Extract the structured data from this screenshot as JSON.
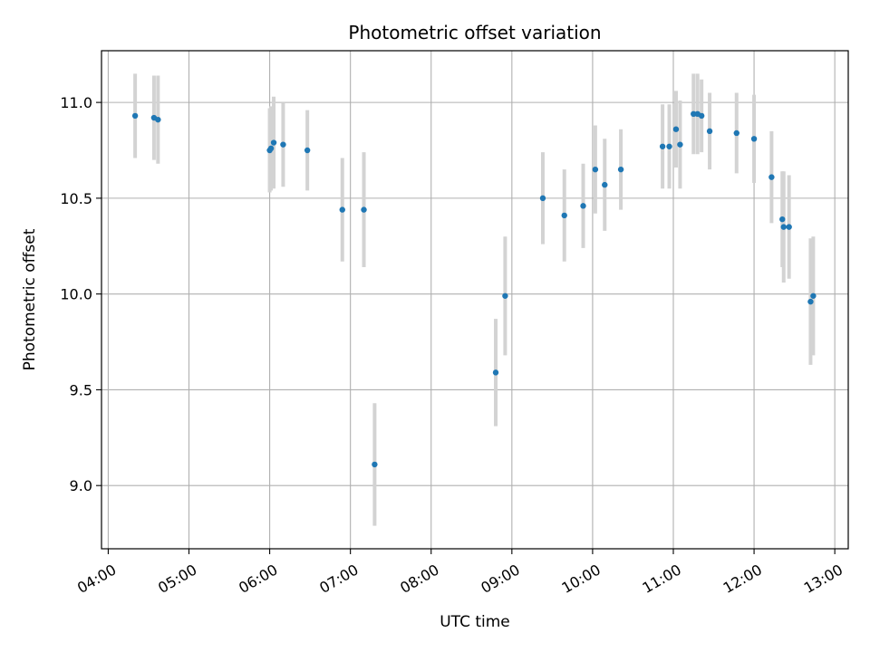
{
  "chart_data": {
    "type": "scatter",
    "title": "Photometric offset variation",
    "xlabel": "UTC time",
    "ylabel": "Photometric offset",
    "grid": true,
    "xlim": [
      "03:55",
      "13:10"
    ],
    "ylim": [
      8.67,
      11.27
    ],
    "x_ticks": [
      "04:00",
      "05:00",
      "06:00",
      "07:00",
      "08:00",
      "09:00",
      "10:00",
      "11:00",
      "12:00",
      "13:00"
    ],
    "y_ticks": [
      "9.0",
      "9.5",
      "10.0",
      "10.5",
      "11.0"
    ],
    "colors": {
      "marker": "#1f77b4",
      "errorbar": "#d3d3d3",
      "grid": "#b0b0b0"
    },
    "points": [
      {
        "x": "04:20",
        "y": 10.93,
        "err": 0.22
      },
      {
        "x": "04:34",
        "y": 10.92,
        "err": 0.22
      },
      {
        "x": "04:37",
        "y": 10.91,
        "err": 0.23
      },
      {
        "x": "06:00",
        "y": 10.75,
        "err": 0.22
      },
      {
        "x": "06:01",
        "y": 10.76,
        "err": 0.22
      },
      {
        "x": "06:03",
        "y": 10.79,
        "err": 0.24
      },
      {
        "x": "06:10",
        "y": 10.78,
        "err": 0.22
      },
      {
        "x": "06:28",
        "y": 10.75,
        "err": 0.21
      },
      {
        "x": "06:54",
        "y": 10.44,
        "err": 0.27
      },
      {
        "x": "07:10",
        "y": 10.44,
        "err": 0.3
      },
      {
        "x": "07:18",
        "y": 9.11,
        "err": 0.32
      },
      {
        "x": "08:48",
        "y": 9.59,
        "err": 0.28
      },
      {
        "x": "08:55",
        "y": 9.99,
        "err": 0.31
      },
      {
        "x": "09:23",
        "y": 10.5,
        "err": 0.24
      },
      {
        "x": "09:39",
        "y": 10.41,
        "err": 0.24
      },
      {
        "x": "09:53",
        "y": 10.46,
        "err": 0.22
      },
      {
        "x": "10:02",
        "y": 10.65,
        "err": 0.23
      },
      {
        "x": "10:09",
        "y": 10.57,
        "err": 0.24
      },
      {
        "x": "10:21",
        "y": 10.65,
        "err": 0.21
      },
      {
        "x": "10:52",
        "y": 10.77,
        "err": 0.22
      },
      {
        "x": "10:57",
        "y": 10.77,
        "err": 0.22
      },
      {
        "x": "11:02",
        "y": 10.86,
        "err": 0.2
      },
      {
        "x": "11:05",
        "y": 10.78,
        "err": 0.23
      },
      {
        "x": "11:15",
        "y": 10.94,
        "err": 0.21
      },
      {
        "x": "11:18",
        "y": 10.94,
        "err": 0.21
      },
      {
        "x": "11:21",
        "y": 10.93,
        "err": 0.19
      },
      {
        "x": "11:27",
        "y": 10.85,
        "err": 0.2
      },
      {
        "x": "11:47",
        "y": 10.84,
        "err": 0.21
      },
      {
        "x": "12:00",
        "y": 10.81,
        "err": 0.23
      },
      {
        "x": "12:13",
        "y": 10.61,
        "err": 0.24
      },
      {
        "x": "12:21",
        "y": 10.39,
        "err": 0.25
      },
      {
        "x": "12:22",
        "y": 10.35,
        "err": 0.29
      },
      {
        "x": "12:26",
        "y": 10.35,
        "err": 0.27
      },
      {
        "x": "12:42",
        "y": 9.96,
        "err": 0.33
      },
      {
        "x": "12:44",
        "y": 9.99,
        "err": 0.31
      }
    ]
  }
}
